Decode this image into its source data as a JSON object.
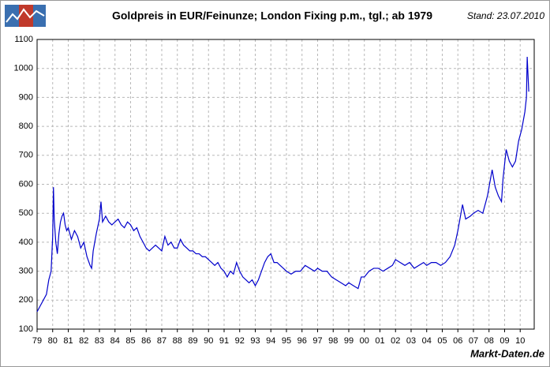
{
  "chart_data": {
    "type": "line",
    "title": "Goldpreis in EUR/Feinunze; London Fixing p.m., tgl.; ab 1979",
    "date_note": "Stand: 23.07.2010",
    "source": "Markt-Daten.de",
    "x": [
      1979.0,
      1979.2,
      1979.4,
      1979.6,
      1979.75,
      1979.9,
      1980.0,
      1980.05,
      1980.1,
      1980.2,
      1980.3,
      1980.4,
      1980.5,
      1980.6,
      1980.7,
      1980.8,
      1980.9,
      1981.0,
      1981.2,
      1981.4,
      1981.6,
      1981.8,
      1982.0,
      1982.2,
      1982.4,
      1982.5,
      1982.6,
      1982.8,
      1983.0,
      1983.1,
      1983.2,
      1983.4,
      1983.6,
      1983.8,
      1984.0,
      1984.2,
      1984.4,
      1984.6,
      1984.8,
      1985.0,
      1985.2,
      1985.4,
      1985.6,
      1985.8,
      1986.0,
      1986.2,
      1986.4,
      1986.6,
      1986.8,
      1987.0,
      1987.2,
      1987.4,
      1987.6,
      1987.8,
      1988.0,
      1988.2,
      1988.4,
      1988.6,
      1988.8,
      1989.0,
      1989.2,
      1989.4,
      1989.6,
      1989.8,
      1990.0,
      1990.2,
      1990.4,
      1990.6,
      1990.8,
      1991.0,
      1991.2,
      1991.4,
      1991.6,
      1991.8,
      1992.0,
      1992.2,
      1992.4,
      1992.6,
      1992.8,
      1993.0,
      1993.2,
      1993.4,
      1993.6,
      1993.8,
      1994.0,
      1994.2,
      1994.4,
      1994.6,
      1994.8,
      1995.0,
      1995.3,
      1995.6,
      1995.9,
      1996.2,
      1996.5,
      1996.8,
      1997.0,
      1997.3,
      1997.6,
      1997.9,
      1998.2,
      1998.5,
      1998.8,
      1999.0,
      1999.3,
      1999.6,
      1999.8,
      2000.0,
      2000.3,
      2000.6,
      2000.9,
      2001.2,
      2001.5,
      2001.8,
      2002.0,
      2002.3,
      2002.6,
      2002.9,
      2003.2,
      2003.5,
      2003.8,
      2004.0,
      2004.3,
      2004.6,
      2004.9,
      2005.2,
      2005.5,
      2005.8,
      2006.0,
      2006.3,
      2006.5,
      2006.8,
      2007.0,
      2007.3,
      2007.6,
      2007.9,
      2008.1,
      2008.2,
      2008.4,
      2008.6,
      2008.8,
      2008.9,
      2009.1,
      2009.3,
      2009.5,
      2009.7,
      2009.9,
      2010.1,
      2010.3,
      2010.4,
      2010.45,
      2010.5,
      2010.55
    ],
    "series": [
      {
        "color": "#0000cc",
        "values": [
          160,
          180,
          200,
          220,
          270,
          300,
          420,
          590,
          480,
          400,
          360,
          430,
          470,
          490,
          500,
          460,
          440,
          450,
          410,
          440,
          420,
          380,
          400,
          350,
          320,
          310,
          370,
          430,
          480,
          540,
          470,
          490,
          470,
          460,
          470,
          480,
          460,
          450,
          470,
          460,
          440,
          450,
          420,
          400,
          380,
          370,
          380,
          390,
          380,
          370,
          420,
          390,
          400,
          380,
          380,
          410,
          390,
          380,
          370,
          370,
          360,
          360,
          350,
          350,
          340,
          330,
          320,
          330,
          310,
          300,
          280,
          300,
          290,
          330,
          300,
          280,
          270,
          260,
          270,
          250,
          270,
          300,
          330,
          350,
          360,
          330,
          330,
          320,
          310,
          300,
          290,
          300,
          300,
          320,
          310,
          300,
          310,
          300,
          300,
          280,
          270,
          260,
          250,
          260,
          250,
          240,
          280,
          280,
          300,
          310,
          310,
          300,
          310,
          320,
          340,
          330,
          320,
          330,
          310,
          320,
          330,
          320,
          330,
          330,
          320,
          330,
          350,
          390,
          440,
          530,
          480,
          490,
          500,
          510,
          500,
          560,
          620,
          650,
          590,
          560,
          540,
          620,
          720,
          680,
          660,
          680,
          750,
          790,
          850,
          900,
          1040,
          980,
          920
        ]
      }
    ],
    "xlim": [
      1979,
      2010.9
    ],
    "xticks": [
      {
        "value": 1979,
        "label": "79"
      },
      {
        "value": 1980,
        "label": "80"
      },
      {
        "value": 1981,
        "label": "81"
      },
      {
        "value": 1982,
        "label": "82"
      },
      {
        "value": 1983,
        "label": "83"
      },
      {
        "value": 1984,
        "label": "84"
      },
      {
        "value": 1985,
        "label": "85"
      },
      {
        "value": 1986,
        "label": "86"
      },
      {
        "value": 1987,
        "label": "87"
      },
      {
        "value": 1988,
        "label": "88"
      },
      {
        "value": 1989,
        "label": "89"
      },
      {
        "value": 1990,
        "label": "90"
      },
      {
        "value": 1991,
        "label": "91"
      },
      {
        "value": 1992,
        "label": "92"
      },
      {
        "value": 1993,
        "label": "93"
      },
      {
        "value": 1994,
        "label": "94"
      },
      {
        "value": 1995,
        "label": "95"
      },
      {
        "value": 1996,
        "label": "96"
      },
      {
        "value": 1997,
        "label": "97"
      },
      {
        "value": 1998,
        "label": "98"
      },
      {
        "value": 1999,
        "label": "99"
      },
      {
        "value": 2000,
        "label": "00"
      },
      {
        "value": 2001,
        "label": "01"
      },
      {
        "value": 2002,
        "label": "02"
      },
      {
        "value": 2003,
        "label": "03"
      },
      {
        "value": 2004,
        "label": "04"
      },
      {
        "value": 2005,
        "label": "05"
      },
      {
        "value": 2006,
        "label": "06"
      },
      {
        "value": 2007,
        "label": "07"
      },
      {
        "value": 2008,
        "label": "08"
      },
      {
        "value": 2009,
        "label": "09"
      },
      {
        "value": 2010,
        "label": "10"
      }
    ],
    "ylim": [
      100,
      1100
    ],
    "yticks": [
      100,
      200,
      300,
      400,
      500,
      600,
      700,
      800,
      900,
      1000,
      1100
    ],
    "grid": true
  }
}
